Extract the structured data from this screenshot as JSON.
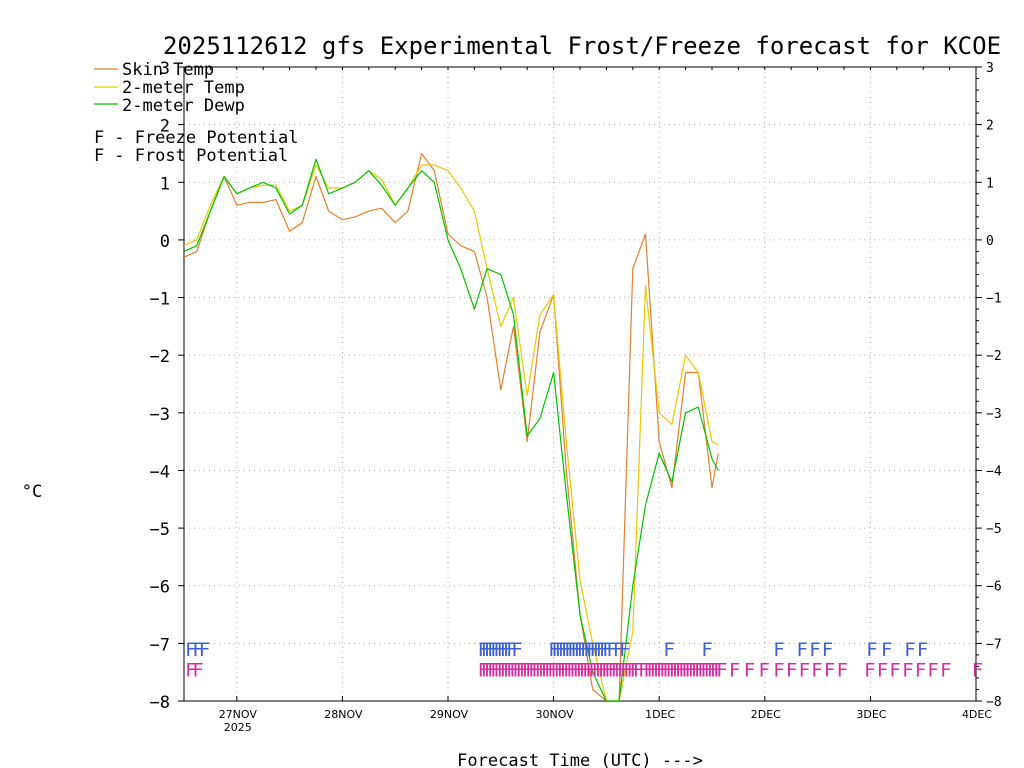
{
  "chart_data": {
    "type": "line",
    "title": "2025112612 gfs Experimental Frost/Freeze forecast for KCOE",
    "xlabel": "Forecast Time (UTC) --->",
    "ylabel": "°C",
    "ylim": [
      -8,
      3
    ],
    "yticks": [
      3,
      2,
      1,
      0,
      -1,
      -2,
      -3,
      -4,
      -5,
      -6,
      -7,
      -8
    ],
    "ytick_labels": [
      "3",
      "2",
      "1",
      "0",
      "−1",
      "−2",
      "−3",
      "−4",
      "−5",
      "−6",
      "−7",
      "−8"
    ],
    "xlim": [
      -0.5,
      7.0
    ],
    "xticks": [
      {
        "label": "27NOV",
        "sublabel": "2025",
        "x": 0
      },
      {
        "label": "28NOV",
        "sublabel": "",
        "x": 1
      },
      {
        "label": "29NOV",
        "sublabel": "",
        "x": 2
      },
      {
        "label": "30NOV",
        "sublabel": "",
        "x": 3
      },
      {
        "label": "1DEC",
        "sublabel": "",
        "x": 4
      },
      {
        "label": "2DEC",
        "sublabel": "",
        "x": 5
      },
      {
        "label": "3DEC",
        "sublabel": "",
        "x": 6
      },
      {
        "label": "4DEC",
        "sublabel": "",
        "x": 7
      }
    ],
    "grid": true,
    "legend": [
      {
        "label": "Skin Temp",
        "color": "#e08030"
      },
      {
        "label": "2-meter Temp",
        "color": "#e8c800"
      },
      {
        "label": "2-meter Dewp",
        "color": "#00c000"
      }
    ],
    "potential_legend": [
      {
        "letter": "F",
        "label": " - Freeze Potential",
        "color": "#d030a0"
      },
      {
        "letter": "F",
        "label": " - Frost Potential",
        "color": "#4060d0"
      }
    ],
    "series": [
      {
        "name": "Skin Temp",
        "color": "#e08030",
        "x": [
          -0.5,
          -0.38,
          -0.25,
          -0.12,
          0.0,
          0.12,
          0.25,
          0.37,
          0.5,
          0.62,
          0.75,
          0.87,
          1.0,
          1.12,
          1.25,
          1.37,
          1.5,
          1.62,
          1.75,
          1.87,
          2.0,
          2.12,
          2.25,
          2.37,
          2.5,
          2.62,
          2.75,
          2.87,
          3.0,
          3.12,
          3.25,
          3.37,
          3.5,
          3.62,
          3.75,
          3.87,
          4.0,
          4.12,
          4.25,
          4.37,
          4.5,
          4.56
        ],
        "y": [
          -0.3,
          -0.2,
          0.5,
          1.1,
          0.6,
          0.65,
          0.65,
          0.7,
          0.15,
          0.3,
          1.1,
          0.5,
          0.35,
          0.4,
          0.5,
          0.55,
          0.3,
          0.5,
          1.5,
          1.2,
          0.1,
          -0.1,
          -0.2,
          -1.0,
          -2.6,
          -1.5,
          -3.5,
          -1.6,
          -0.95,
          -4.0,
          -6.5,
          -7.8,
          -8.0,
          -8.0,
          -0.5,
          0.1,
          -3.5,
          -4.3,
          -2.3,
          -2.3,
          -4.3,
          -3.7
        ]
      },
      {
        "name": "2-meter Temp",
        "color": "#e8c800",
        "x": [
          -0.5,
          -0.38,
          -0.25,
          -0.12,
          0.0,
          0.12,
          0.25,
          0.37,
          0.5,
          0.62,
          0.75,
          0.87,
          1.0,
          1.12,
          1.25,
          1.37,
          1.5,
          1.62,
          1.75,
          1.87,
          2.0,
          2.12,
          2.25,
          2.37,
          2.5,
          2.62,
          2.75,
          2.87,
          3.0,
          3.12,
          3.25,
          3.37,
          3.5,
          3.62,
          3.75,
          3.87,
          4.0,
          4.12,
          4.25,
          4.37,
          4.5,
          4.56
        ],
        "y": [
          -0.1,
          0.0,
          0.6,
          1.1,
          0.8,
          0.9,
          0.95,
          0.95,
          0.5,
          0.6,
          1.3,
          0.9,
          0.9,
          1.0,
          1.2,
          1.05,
          0.6,
          0.9,
          1.3,
          1.3,
          1.2,
          0.9,
          0.5,
          -0.5,
          -1.5,
          -1.0,
          -2.7,
          -1.3,
          -0.95,
          -3.5,
          -5.9,
          -7.0,
          -8.0,
          -8.0,
          -6.8,
          -0.8,
          -3.0,
          -3.2,
          -2.0,
          -2.3,
          -3.5,
          -3.55
        ]
      },
      {
        "name": "2-meter Dewp",
        "color": "#00c000",
        "x": [
          -0.5,
          -0.38,
          -0.25,
          -0.12,
          0.0,
          0.12,
          0.25,
          0.37,
          0.5,
          0.62,
          0.75,
          0.87,
          1.0,
          1.12,
          1.25,
          1.37,
          1.5,
          1.62,
          1.75,
          1.87,
          2.0,
          2.12,
          2.25,
          2.37,
          2.5,
          2.62,
          2.75,
          2.87,
          3.0,
          3.12,
          3.25,
          3.37,
          3.5,
          3.62,
          3.75,
          3.87,
          4.0,
          4.12,
          4.25,
          4.37,
          4.5,
          4.56
        ],
        "y": [
          -0.2,
          -0.1,
          0.5,
          1.1,
          0.8,
          0.9,
          1.0,
          0.9,
          0.45,
          0.6,
          1.4,
          0.8,
          0.9,
          1.0,
          1.2,
          0.95,
          0.6,
          0.9,
          1.2,
          1.0,
          0.0,
          -0.5,
          -1.2,
          -0.5,
          -0.6,
          -1.3,
          -3.4,
          -3.1,
          -2.3,
          -4.4,
          -6.5,
          -7.5,
          -8.0,
          -8.0,
          -6.0,
          -4.6,
          -3.7,
          -4.2,
          -3.0,
          -2.9,
          -3.8,
          -4.0
        ]
      }
    ],
    "frost_flags": {
      "color": "#4060d0",
      "y": -7.1,
      "letter": "F",
      "x": [
        -0.49,
        -0.42,
        -0.36,
        2.28,
        2.31,
        2.34,
        2.37,
        2.4,
        2.43,
        2.46,
        2.49,
        2.52,
        2.55,
        2.6,
        2.95,
        2.98,
        3.01,
        3.04,
        3.07,
        3.1,
        3.13,
        3.16,
        3.19,
        3.22,
        3.25,
        3.28,
        3.31,
        3.34,
        3.37,
        3.4,
        3.43,
        3.46,
        3.5,
        3.56,
        3.62,
        4.04,
        4.4,
        5.08,
        5.3,
        5.42,
        5.54,
        5.96,
        6.1,
        6.32,
        6.44
      ]
    },
    "freeze_flags": {
      "color": "#d030a0",
      "y": -7.45,
      "letter": "F",
      "x": [
        -0.49,
        -0.42,
        2.28,
        2.31,
        2.34,
        2.37,
        2.4,
        2.43,
        2.46,
        2.49,
        2.52,
        2.55,
        2.58,
        2.61,
        2.64,
        2.67,
        2.7,
        2.73,
        2.76,
        2.79,
        2.82,
        2.85,
        2.88,
        2.91,
        2.94,
        2.97,
        3.0,
        3.03,
        3.06,
        3.09,
        3.12,
        3.15,
        3.18,
        3.21,
        3.24,
        3.27,
        3.3,
        3.33,
        3.36,
        3.39,
        3.42,
        3.45,
        3.48,
        3.51,
        3.54,
        3.57,
        3.6,
        3.63,
        3.66,
        3.69,
        3.72,
        3.75,
        3.8,
        3.85,
        3.88,
        3.91,
        3.94,
        3.97,
        4.0,
        4.03,
        4.06,
        4.09,
        4.12,
        4.15,
        4.18,
        4.21,
        4.24,
        4.27,
        4.3,
        4.33,
        4.36,
        4.39,
        4.42,
        4.45,
        4.48,
        4.51,
        4.54,
        4.66,
        4.8,
        4.94,
        5.08,
        5.2,
        5.32,
        5.44,
        5.56,
        5.68,
        5.94,
        6.06,
        6.18,
        6.3,
        6.42,
        6.54,
        6.66,
        6.96
      ]
    }
  }
}
